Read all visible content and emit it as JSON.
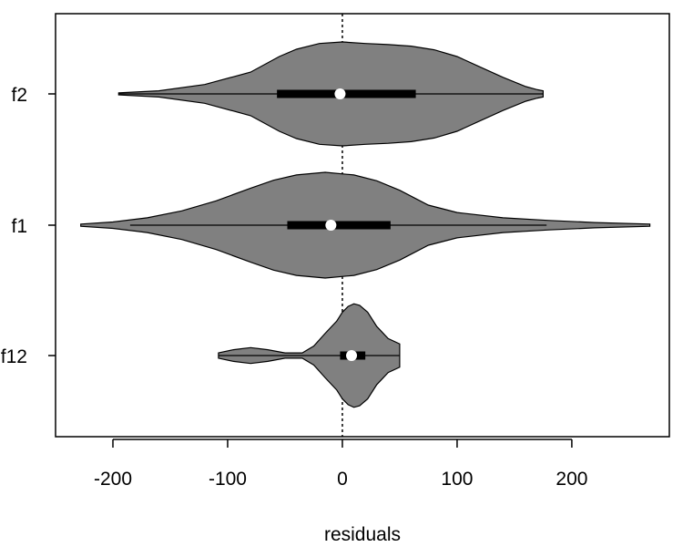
{
  "chart_data": {
    "type": "violin",
    "title": "",
    "xlabel": "residuals",
    "ylabel": "",
    "xlim": [
      -250,
      285
    ],
    "x_ticks": [
      -200,
      -100,
      0,
      100,
      200
    ],
    "x_tick_labels": [
      "-200",
      "-100",
      "0",
      "100",
      "200"
    ],
    "reference_line_x": 0,
    "colors": {
      "violin_fill": "#808080",
      "outline": "#000000",
      "median": "#ffffff"
    },
    "categories": [
      "f2",
      "f1",
      "f12"
    ],
    "series": [
      {
        "label": "f2",
        "whisker": [
          -195,
          175
        ],
        "box": [
          -57,
          64
        ],
        "median": -2,
        "density": [
          [
            -195,
            0.02
          ],
          [
            -160,
            0.06
          ],
          [
            -120,
            0.18
          ],
          [
            -80,
            0.42
          ],
          [
            -55,
            0.72
          ],
          [
            -40,
            0.86
          ],
          [
            -20,
            0.97
          ],
          [
            0,
            1.0
          ],
          [
            20,
            0.97
          ],
          [
            40,
            0.95
          ],
          [
            60,
            0.92
          ],
          [
            80,
            0.85
          ],
          [
            100,
            0.72
          ],
          [
            120,
            0.52
          ],
          [
            140,
            0.32
          ],
          [
            160,
            0.14
          ],
          [
            170,
            0.08
          ],
          [
            175,
            0.06
          ]
        ]
      },
      {
        "label": "f1",
        "whisker": [
          -185,
          178
        ],
        "box": [
          -48,
          42
        ],
        "median": -10,
        "density": [
          [
            -228,
            0.02
          ],
          [
            -200,
            0.06
          ],
          [
            -170,
            0.14
          ],
          [
            -140,
            0.27
          ],
          [
            -110,
            0.46
          ],
          [
            -80,
            0.7
          ],
          [
            -60,
            0.85
          ],
          [
            -40,
            0.95
          ],
          [
            -15,
            1.0
          ],
          [
            10,
            0.95
          ],
          [
            30,
            0.84
          ],
          [
            50,
            0.66
          ],
          [
            75,
            0.38
          ],
          [
            100,
            0.24
          ],
          [
            140,
            0.14
          ],
          [
            180,
            0.09
          ],
          [
            220,
            0.05
          ],
          [
            268,
            0.02
          ]
        ]
      },
      {
        "label": "f12",
        "whisker": [
          -108,
          50
        ],
        "box": [
          -2,
          20
        ],
        "median": 8,
        "density": [
          [
            -108,
            0.05
          ],
          [
            -95,
            0.11
          ],
          [
            -80,
            0.15
          ],
          [
            -65,
            0.11
          ],
          [
            -50,
            0.05
          ],
          [
            -35,
            0.05
          ],
          [
            -25,
            0.18
          ],
          [
            -15,
            0.42
          ],
          [
            -5,
            0.65
          ],
          [
            0,
            0.82
          ],
          [
            5,
            0.93
          ],
          [
            10,
            0.98
          ],
          [
            15,
            0.95
          ],
          [
            22,
            0.82
          ],
          [
            30,
            0.55
          ],
          [
            40,
            0.32
          ],
          [
            50,
            0.22
          ]
        ]
      }
    ]
  }
}
